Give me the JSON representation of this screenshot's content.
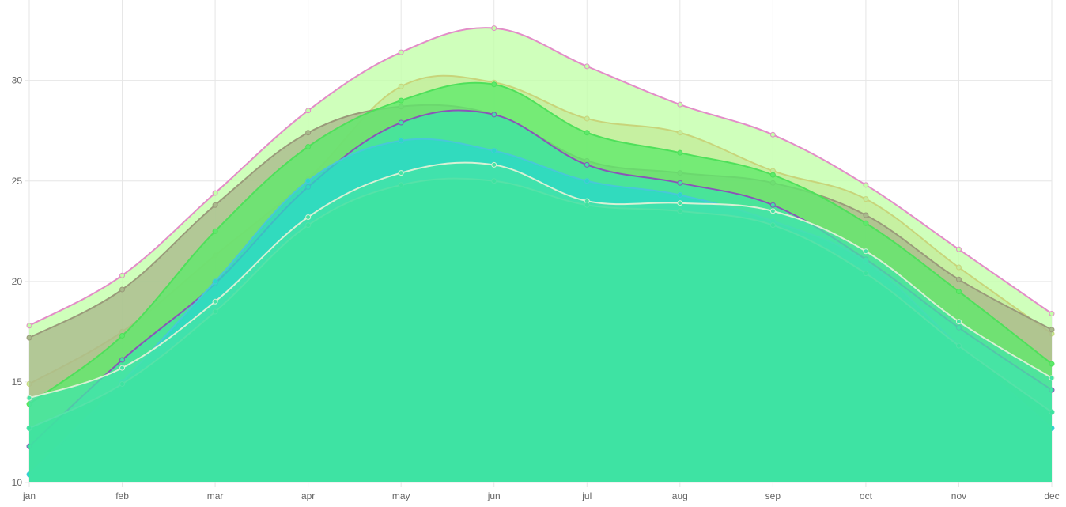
{
  "chart_data": {
    "type": "area",
    "title": "",
    "xlabel": "",
    "ylabel": "",
    "categories": [
      "jan",
      "feb",
      "mar",
      "apr",
      "may",
      "jun",
      "jul",
      "aug",
      "sep",
      "oct",
      "nov",
      "dec"
    ],
    "ylim": [
      10,
      34
    ],
    "yticks": [
      10,
      15,
      20,
      25,
      30
    ],
    "grid": true,
    "legend": "none",
    "series": [
      {
        "color": "#c2ffa8",
        "stroke": "#e38cc8",
        "values": [
          17.8,
          20.3,
          24.4,
          28.5,
          31.4,
          32.6,
          30.7,
          28.8,
          27.3,
          24.8,
          21.6,
          18.4
        ]
      },
      {
        "color": "#c3ec9a",
        "stroke": "#c8d47a",
        "values": [
          14.9,
          17.5,
          21.3,
          25.1,
          29.7,
          29.9,
          28.1,
          27.4,
          25.5,
          24.1,
          20.7,
          17.4
        ]
      },
      {
        "color": "#a9b98c",
        "stroke": "#9a9a7a",
        "values": [
          17.2,
          19.6,
          23.8,
          27.4,
          28.7,
          28.3,
          26.0,
          25.4,
          24.9,
          23.3,
          20.1,
          17.6
        ]
      },
      {
        "color": "#5de96a",
        "stroke": "#4ee05a",
        "values": [
          13.9,
          17.3,
          22.5,
          26.7,
          29.0,
          29.8,
          27.4,
          26.4,
          25.3,
          22.9,
          19.5,
          15.9
        ]
      },
      {
        "color": "#3fe4a4",
        "stroke": "#8a55b8",
        "values": [
          11.8,
          16.1,
          19.9,
          24.7,
          27.9,
          28.3,
          25.8,
          24.9,
          23.8,
          21.1,
          17.7,
          14.6
        ]
      },
      {
        "color": "#2ad9c8",
        "stroke": "#48c8d8",
        "values": [
          10.4,
          15.0,
          20.0,
          25.0,
          27.0,
          26.5,
          25.0,
          24.3,
          23.0,
          21.0,
          16.8,
          12.7
        ]
      },
      {
        "color": "#45e4a6",
        "stroke": "#d8f0d4",
        "values": [
          14.2,
          15.7,
          19.0,
          23.2,
          25.4,
          25.8,
          24.0,
          23.9,
          23.5,
          21.5,
          18.0,
          15.2
        ]
      },
      {
        "color": "#3de3a0",
        "stroke": "#55e2a8",
        "values": [
          12.7,
          14.9,
          18.5,
          22.8,
          24.8,
          25.0,
          23.8,
          23.5,
          22.8,
          20.4,
          16.8,
          13.5
        ]
      }
    ]
  }
}
